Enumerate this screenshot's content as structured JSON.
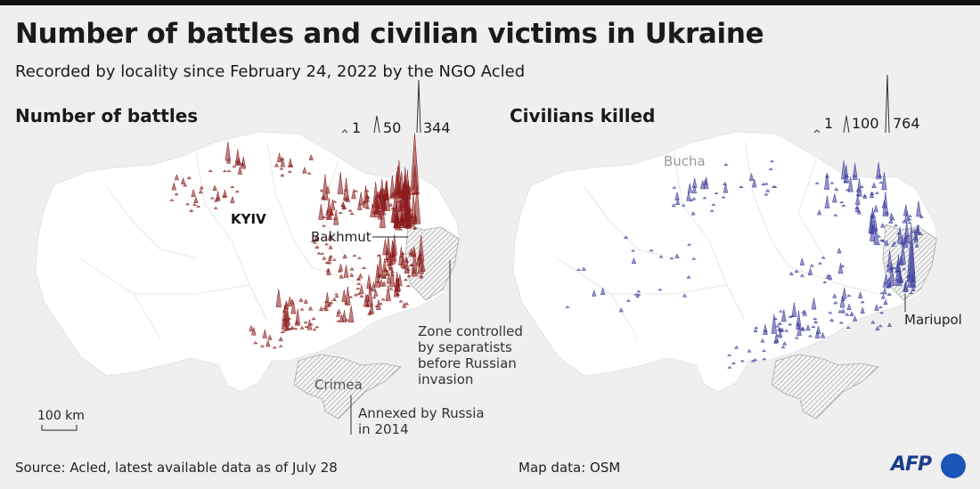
{
  "header": {
    "title": "Number of battles and civilian victims in Ukraine",
    "subtitle": "Recorded by locality since February 24, 2022 by the NGO Acled"
  },
  "battles_map": {
    "title": "Number of battles",
    "legend": [
      "1",
      "50",
      "344"
    ],
    "color": "#8b1a1a",
    "labels": {
      "kyiv": "KYIV",
      "bakhmut": "Bakhmut",
      "crimea": "Crimea",
      "separatist_zone": [
        "Zone controlled",
        "by separatists",
        "before Russian",
        "invasion"
      ],
      "annexed": [
        "Annexed by Russia",
        "in 2014"
      ],
      "scale": "100 km"
    }
  },
  "civilians_map": {
    "title": "Civilians killed",
    "legend": [
      "1",
      "100",
      "764"
    ],
    "color": "#3b3b9c",
    "labels": {
      "bucha": "Bucha",
      "mariupol": "Mariupol"
    }
  },
  "footer": {
    "source": "Source: Acled, latest available data as of July 28",
    "map_data": "Map data: OSM",
    "agency": "AFP"
  },
  "colors": {
    "background": "#efefef",
    "land": "#ffffff",
    "borders": "#dcdcdc",
    "battles": "#8b1a1a",
    "civilians": "#3b3b9c",
    "agency_blue": "#1b55b7"
  }
}
